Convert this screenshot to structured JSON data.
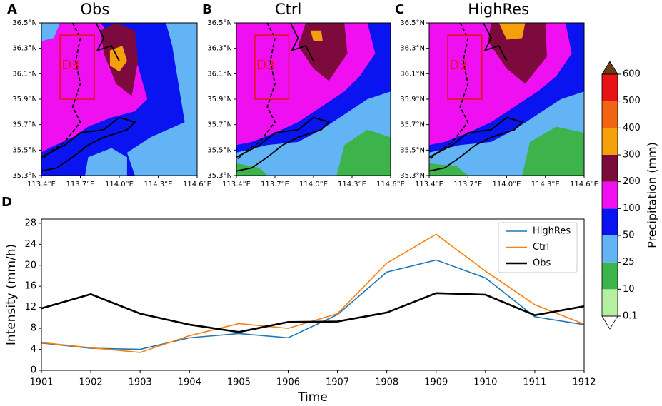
{
  "chart_data": [
    {
      "type": "map",
      "label": "A",
      "title": "Obs",
      "box_label": "D3",
      "xlim": [
        113.4,
        114.6
      ],
      "ylim": [
        35.3,
        36.5
      ],
      "xticks": [
        {
          "value": 113.4,
          "label": "113.4°E"
        },
        {
          "value": 113.7,
          "label": "113.7°E"
        },
        {
          "value": 114.0,
          "label": "114.0°E"
        },
        {
          "value": 114.3,
          "label": "114.3°E"
        },
        {
          "value": 114.6,
          "label": "114.6°E"
        }
      ],
      "yticks": [
        {
          "value": 35.3,
          "label": "35.3°N"
        },
        {
          "value": 35.5,
          "label": "35.5°N"
        },
        {
          "value": 35.7,
          "label": "35.7°N"
        },
        {
          "value": 35.9,
          "label": "35.9°N"
        },
        {
          "value": 36.1,
          "label": "36.1°N"
        },
        {
          "value": 36.3,
          "label": "36.3°N"
        },
        {
          "value": 36.5,
          "label": "36.5°N"
        }
      ]
    },
    {
      "type": "map",
      "label": "B",
      "title": "Ctrl",
      "box_label": "D3",
      "xlim": [
        113.4,
        114.6
      ],
      "ylim": [
        35.3,
        36.5
      ],
      "xticks": [
        {
          "value": 113.4,
          "label": "113.4°E"
        },
        {
          "value": 113.7,
          "label": "113.7°E"
        },
        {
          "value": 114.0,
          "label": "114.0°E"
        },
        {
          "value": 114.3,
          "label": "114.3°E"
        },
        {
          "value": 114.6,
          "label": "114.6°E"
        }
      ],
      "yticks": [
        {
          "value": 35.3,
          "label": "35.3°N"
        },
        {
          "value": 35.5,
          "label": "35.5°N"
        },
        {
          "value": 35.7,
          "label": "35.7°N"
        },
        {
          "value": 35.9,
          "label": "35.9°N"
        },
        {
          "value": 36.1,
          "label": "36.1°N"
        },
        {
          "value": 36.3,
          "label": "36.3°N"
        },
        {
          "value": 36.5,
          "label": "36.5°N"
        }
      ]
    },
    {
      "type": "map",
      "label": "C",
      "title": "HighRes",
      "box_label": "D3",
      "xlim": [
        113.4,
        114.6
      ],
      "ylim": [
        35.3,
        36.5
      ],
      "xticks": [
        {
          "value": 113.4,
          "label": "113.4°E"
        },
        {
          "value": 113.7,
          "label": "113.7°E"
        },
        {
          "value": 114.0,
          "label": "114.0°E"
        },
        {
          "value": 114.3,
          "label": "114.3°E"
        },
        {
          "value": 114.6,
          "label": "114.6°E"
        }
      ],
      "yticks": [
        {
          "value": 35.3,
          "label": "35.3°N"
        },
        {
          "value": 35.5,
          "label": "35.5°N"
        },
        {
          "value": 35.7,
          "label": "35.7°N"
        },
        {
          "value": 35.9,
          "label": "35.9°N"
        },
        {
          "value": 36.1,
          "label": "36.1°N"
        },
        {
          "value": 36.3,
          "label": "36.3°N"
        },
        {
          "value": 36.5,
          "label": "36.5°N"
        }
      ]
    },
    {
      "type": "line",
      "label": "D",
      "xlabel": "Time",
      "ylabel": "Intensity (mm/h)",
      "categories": [
        "1901",
        "1902",
        "1903",
        "1904",
        "1905",
        "1906",
        "1907",
        "1908",
        "1909",
        "1910",
        "1911",
        "1912"
      ],
      "series": [
        {
          "name": "HighRes",
          "color": "#1f77b4",
          "values": [
            5.2,
            4.2,
            4.0,
            6.2,
            7.0,
            6.2,
            10.6,
            18.7,
            21.0,
            17.6,
            10.2,
            8.7
          ]
        },
        {
          "name": "Ctrl",
          "color": "#ff7f0e",
          "values": [
            5.3,
            4.3,
            3.4,
            6.6,
            8.9,
            8.0,
            10.8,
            20.4,
            25.9,
            18.9,
            12.5,
            8.8
          ]
        },
        {
          "name": "Obs",
          "color": "#000000",
          "values": [
            11.8,
            14.5,
            10.8,
            8.7,
            7.3,
            9.2,
            9.3,
            11.0,
            14.7,
            14.4,
            10.5,
            12.2
          ]
        }
      ],
      "ylim": [
        0,
        28.8
      ],
      "yticks": [
        0,
        4,
        8,
        12,
        16,
        20,
        24,
        28
      ],
      "legend": "upper right"
    }
  ],
  "colorbar": {
    "label": "Precipitation (mm)",
    "ticks": [
      0.1,
      10,
      25,
      50,
      100,
      200,
      300,
      400,
      500,
      600
    ],
    "colors": [
      "#b4f0a0",
      "#3cb44b",
      "#63b4f5",
      "#0a14f0",
      "#f00ff0",
      "#7d0a3c",
      "#f5a00a",
      "#f06414",
      "#e61414"
    ],
    "under_color": "#ffffff",
    "over_color": "#6e3c14"
  }
}
